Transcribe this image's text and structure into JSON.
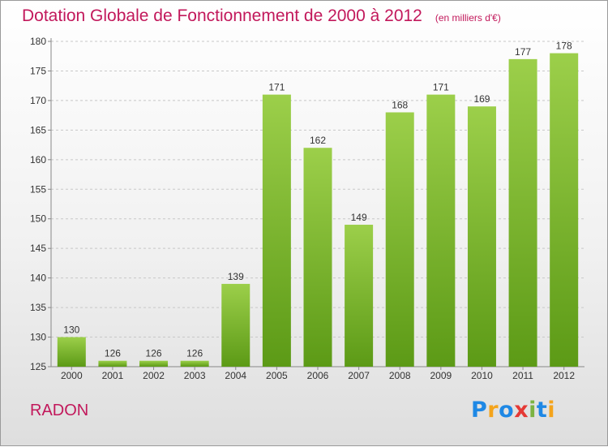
{
  "header": {
    "title": "Dotation Globale de Fonctionnement de 2000 à 2012",
    "subtitle": "(en milliers d'€)"
  },
  "footer": {
    "commune": "RADON",
    "logo": "Proxiti"
  },
  "colors": {
    "title": "#c2185b",
    "bar_light": "#9ccf4a",
    "bar_dark": "#5c9a16",
    "grid": "#c8c8c8"
  },
  "chart_data": {
    "type": "bar",
    "title": "Dotation Globale de Fonctionnement de 2000 à 2012",
    "subtitle": "(en milliers d'€)",
    "categories": [
      "2000",
      "2001",
      "2002",
      "2003",
      "2004",
      "2005",
      "2006",
      "2007",
      "2008",
      "2009",
      "2010",
      "2011",
      "2012"
    ],
    "values": [
      130,
      126,
      126,
      126,
      139,
      171,
      162,
      149,
      168,
      171,
      169,
      177,
      178
    ],
    "xlabel": "",
    "ylabel": "",
    "ylim": [
      125,
      180
    ],
    "yticks": [
      125,
      130,
      135,
      140,
      145,
      150,
      155,
      160,
      165,
      170,
      175,
      180
    ],
    "grid": "horizontal dashed",
    "data_labels": true
  }
}
